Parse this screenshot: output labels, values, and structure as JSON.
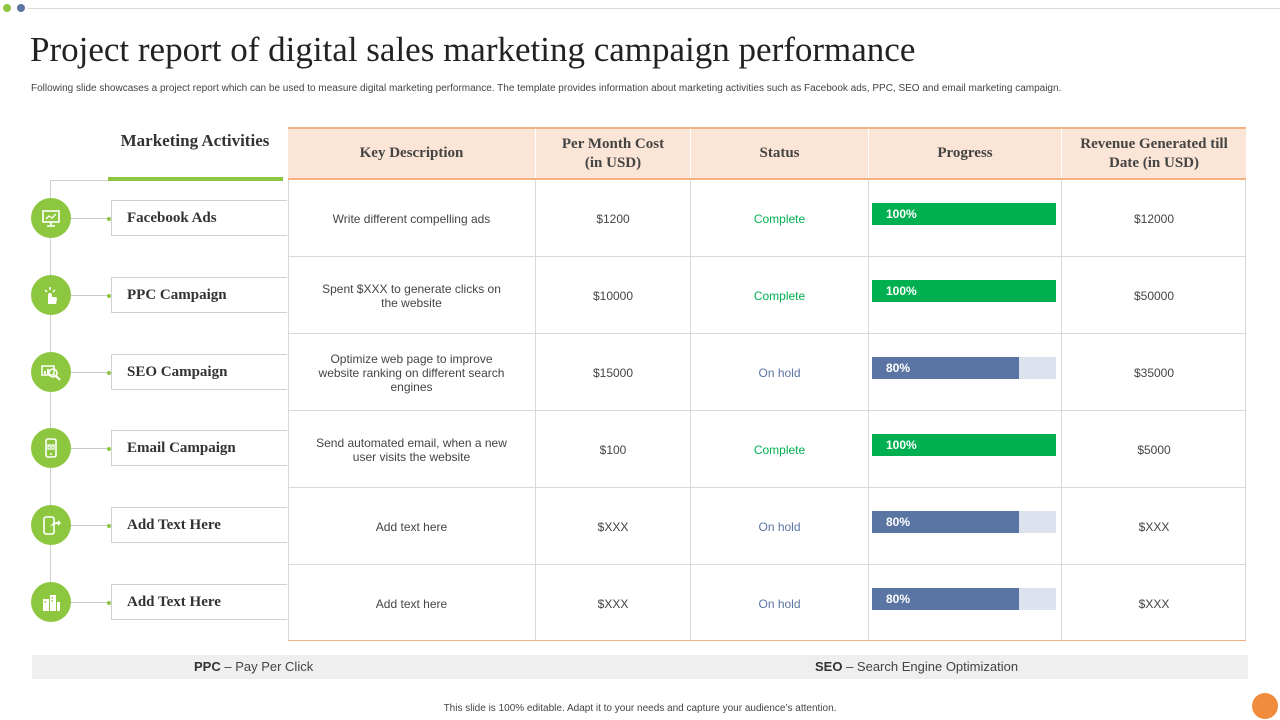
{
  "colors": {
    "accent_green": "#8dc63f",
    "complete_green": "#00b050",
    "onhold_blue": "#5a75a3",
    "header_peach": "#fbe5d6",
    "orange": "#f08c3c"
  },
  "title": "Project report of digital sales marketing campaign performance",
  "subtitle": "Following slide showcases a project report which can be used to measure digital marketing performance. The template provides information about marketing activities such as Facebook ads, PPC,  SEO and email  marketing campaign.",
  "activities_header": "Marketing Activities",
  "activities": [
    {
      "label": "Facebook Ads",
      "icon": "monitor-presentation-icon"
    },
    {
      "label": "PPC Campaign",
      "icon": "hand-click-icon"
    },
    {
      "label": "SEO Campaign",
      "icon": "search-analytics-icon"
    },
    {
      "label": "Email Campaign",
      "icon": "mobile-email-icon"
    },
    {
      "label": "Add Text Here",
      "icon": "mobile-share-icon"
    },
    {
      "label": "Add Text Here",
      "icon": "building-chart-icon"
    }
  ],
  "table": {
    "headers": {
      "description": "Key Description",
      "cost": "Per Month Cost (in USD)",
      "status": "Status",
      "progress": "Progress",
      "revenue": "Revenue Generated till Date (in USD)"
    },
    "rows": [
      {
        "description": "Write different compelling ads",
        "cost": "$1200",
        "status": "Complete",
        "progress_label": "100%",
        "progress_value": 100,
        "revenue": "$12000"
      },
      {
        "description": "Spent $XXX  to generate clicks on the website",
        "cost": "$10000",
        "status": "Complete",
        "progress_label": "100%",
        "progress_value": 100,
        "revenue": "$50000"
      },
      {
        "description": "Optimize web page to improve website ranking on different search engines",
        "cost": "$15000",
        "status": "On hold",
        "progress_label": "80%",
        "progress_value": 80,
        "revenue": "$35000"
      },
      {
        "description": "Send automated email, when a new user visits the website",
        "cost": "$100",
        "status": "Complete",
        "progress_label": "100%",
        "progress_value": 100,
        "revenue": "$5000"
      },
      {
        "description": "Add text here",
        "cost": "$XXX",
        "status": "On hold",
        "progress_label": "80%",
        "progress_value": 80,
        "revenue": "$XXX"
      },
      {
        "description": "Add text here",
        "cost": "$XXX",
        "status": "On hold",
        "progress_label": "80%",
        "progress_value": 80,
        "revenue": "$XXX"
      }
    ]
  },
  "footer": {
    "abbr1_key": "PPC",
    "abbr1_value": " – Pay Per Click",
    "abbr2_key": "SEO",
    "abbr2_value": " – Search Engine Optimization",
    "note": "This slide is 100% editable.  Adapt it to your needs and capture your audience’s attention."
  }
}
